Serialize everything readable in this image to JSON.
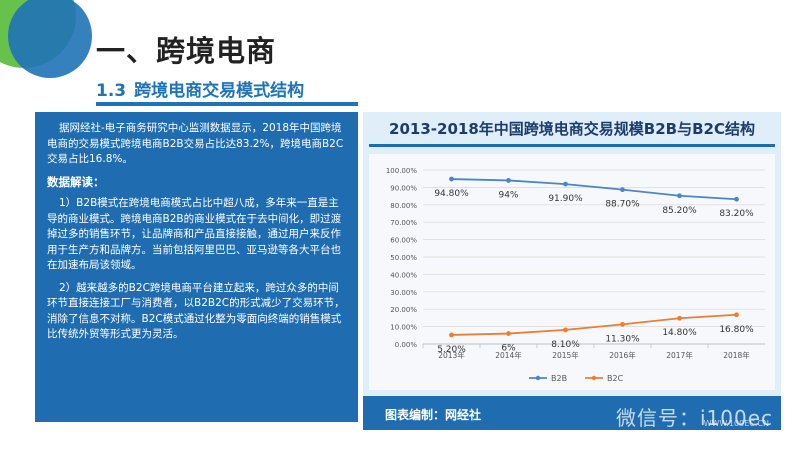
{
  "header": {
    "title": "一、跨境电商",
    "subtitle_num": "1.3",
    "subtitle": "跨境电商交易模式结构"
  },
  "left_panel": {
    "intro": "据网经社-电子商务研究中心监测数据显示，2018年中国跨境电商的交易模式跨境电商B2B交易占比达83.2%，跨境电商B2C交易占比16.8%。",
    "heading": "数据解读：",
    "para1": "1）B2B模式在跨境电商模式占比中超八成，多年来一直是主导的商业模式。跨境电商B2B的商业模式在于去中间化，即过渡掉过多的销售环节，让品牌商和产品直接接触，通过用户来反作用于生产方和品牌方。当前包括阿里巴巴、亚马逊等各大平台也在加速布局该领域。",
    "para2": "2）越来越多的B2C跨境电商平台建立起来，跨过众多的中间环节直接连接工厂与消费者，以B2B2C的形式减少了交易环节，消除了信息不对称。B2C模式通过化整为零面向终端的销售模式比传统外贸等形式更为灵活。"
  },
  "chart_box": {
    "footer": "图表编制：网经社",
    "watermark": "微信号：i100ec",
    "watermark_sub": "WWW.100EC.CN"
  },
  "chart_data": {
    "type": "line",
    "title": "2013-2018年中国跨境电商交易规模B2B与B2C结构",
    "categories": [
      "2013年",
      "2014年",
      "2015年",
      "2016年",
      "2017年",
      "2018年"
    ],
    "series": [
      {
        "name": "B2B",
        "values": [
          94.8,
          94,
          91.9,
          88.7,
          85.2,
          83.2
        ],
        "labels": [
          "94.80%",
          "94%",
          "91.90%",
          "88.70%",
          "85.20%",
          "83.20%"
        ],
        "color": "#4a86c8"
      },
      {
        "name": "B2C",
        "values": [
          5.2,
          6,
          8.1,
          11.3,
          14.8,
          16.8
        ],
        "labels": [
          "5.20%",
          "6%",
          "8.10%",
          "11.30%",
          "14.80%",
          "16.80%"
        ],
        "color": "#ed7d31"
      }
    ],
    "ylim": [
      0,
      100
    ],
    "yticks": [
      "0.00%",
      "10.00%",
      "20.00%",
      "30.00%",
      "40.00%",
      "50.00%",
      "60.00%",
      "70.00%",
      "80.00%",
      "90.00%",
      "100.00%"
    ],
    "legend": "bottom",
    "grid": true
  },
  "colors": {
    "primary": "#1f6db0",
    "accent_green": "#66c24a"
  }
}
